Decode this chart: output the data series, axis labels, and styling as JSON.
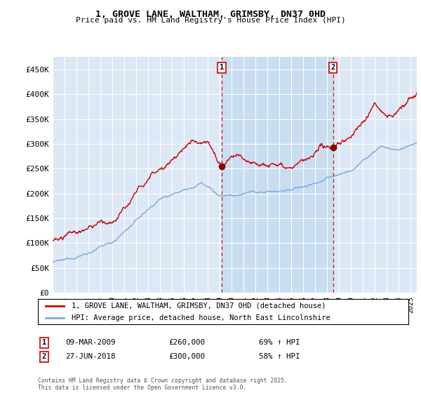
{
  "title": "1, GROVE LANE, WALTHAM, GRIMSBY, DN37 0HD",
  "subtitle": "Price paid vs. HM Land Registry's House Price Index (HPI)",
  "ylim": [
    0,
    475000
  ],
  "yticks": [
    0,
    50000,
    100000,
    150000,
    200000,
    250000,
    300000,
    350000,
    400000,
    450000
  ],
  "ytick_labels": [
    "£0",
    "£50K",
    "£100K",
    "£150K",
    "£200K",
    "£250K",
    "£300K",
    "£350K",
    "£400K",
    "£450K"
  ],
  "background_color": "#ffffff",
  "plot_bg_color": "#dce8f5",
  "highlight_color": "#c8ddf0",
  "grid_color": "#ffffff",
  "sale1_date": "09-MAR-2009",
  "sale1_price": 260000,
  "sale1_hpi": "69% ↑ HPI",
  "sale2_date": "27-JUN-2018",
  "sale2_price": 300000,
  "sale2_hpi": "58% ↑ HPI",
  "legend_label_red": "1, GROVE LANE, WALTHAM, GRIMSBY, DN37 0HD (detached house)",
  "legend_label_blue": "HPI: Average price, detached house, North East Lincolnshire",
  "footer": "Contains HM Land Registry data © Crown copyright and database right 2025.\nThis data is licensed under the Open Government Licence v3.0.",
  "red_color": "#cc0000",
  "blue_color": "#7aaadd",
  "sale_marker_x1": 2009.17,
  "sale_marker_x2": 2018.49,
  "xmin": 1995,
  "xmax": 2025.5
}
